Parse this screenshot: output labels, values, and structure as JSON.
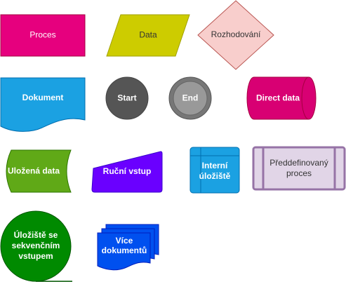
{
  "shapes": {
    "proces": {
      "label": "Proces",
      "fill": "#e6007e"
    },
    "data": {
      "label": "Data",
      "fill": "#cdcc00"
    },
    "rozhodovani": {
      "label": "Rozhodování",
      "fill": "#f8cecc"
    },
    "dokument": {
      "label": "Dokument",
      "fill": "#1ba1e2"
    },
    "start": {
      "label": "Start",
      "fill": "#555555"
    },
    "end": {
      "label": "End",
      "fill": "#999999"
    },
    "direct_data": {
      "label": "Direct data",
      "fill": "#d80073"
    },
    "ulozena_data": {
      "label": "Uložená data",
      "fill": "#60a917"
    },
    "rucni_vstup": {
      "label": "Ruční vstup",
      "fill": "#6a00ff"
    },
    "interni_uloziste": {
      "line1": "Interní",
      "line2": "úložiště",
      "fill": "#1ba1e2"
    },
    "preddefinovany_proces": {
      "line1": "Předdefinovaný",
      "line2": "proces",
      "fill": "#e1d5e7"
    },
    "uloziste_sekvencnim": {
      "line1": "Úložiště se",
      "line2": "sekvenčním",
      "line3": "vstupem",
      "fill": "#008a00"
    },
    "vice_dokumentu": {
      "line1": "Více",
      "line2": "dokumentů",
      "fill": "#0050ef"
    }
  }
}
